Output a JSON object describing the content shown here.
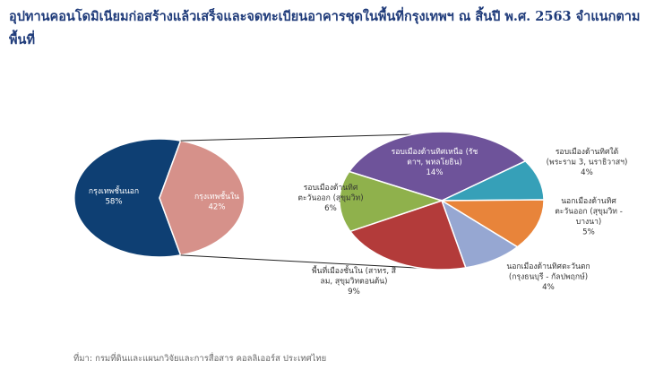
{
  "header": {
    "title": "อุปทานคอนโดมิเนียมก่อสร้างแล้วเสร็จและจดทะเบียนอาคารชุดในพื้นที่กรุงเทพฯ ณ สิ้นปี พ.ศ. 2563 จำแนกตามพื้นที่"
  },
  "footer": {
    "source": "ที่มา: กรมที่ดินและแผนกวิจัยและการสื่อสาร คอลลิเออร์ส ประเทศไทย"
  },
  "colors": {
    "outer_bkk": "#0e3f73",
    "inner_bkk": "#d6918a",
    "north": "#6e539a",
    "east_inner": "#8fb14c",
    "inner_city": "#b33b3a",
    "outer_west": "#96a7d2",
    "outer_east": "#e8843a",
    "north_outer": "#36a0b8",
    "text_light": "#ffffff",
    "text_dark": "#333333"
  },
  "chart_data": [
    {
      "type": "pie",
      "title": "",
      "slices": [
        {
          "name": "กรุงเทพชั้นนอก",
          "value": 58,
          "label_lines": [
            "กรุงเทพชั้นนอก",
            "58%"
          ]
        },
        {
          "name": "กรุงเทพชั้นใน",
          "value": 42,
          "label_lines": [
            "กรุงเทพชั้นใน",
            "42%"
          ]
        }
      ]
    },
    {
      "type": "pie",
      "title": "",
      "slices": [
        {
          "name": "รอบเมืองด้านทิศเหนือ (รัชดาฯ, พหลโยธิน)",
          "value": 14,
          "label_lines": [
            "รอบเมืองด้านทิศเหนือ (รัช",
            "ดาฯ, พหลโยธิน)",
            "14%"
          ]
        },
        {
          "name": "รอบเมืองด้านทิศใต้ (พระราม 3, นราธิวาสฯ)",
          "value": 4,
          "label_lines": [
            "รอบเมืองด้านทิศใต้",
            "(พระราม 3, นราธิวาสฯ)",
            "4%"
          ]
        },
        {
          "name": "นอกเมืองด้านทิศตะวันออก (สุขุมวิท - บางนา)",
          "value": 5,
          "label_lines": [
            "นอกเมืองด้านทิศ",
            "ตะวันออก (สุขุมวิท -",
            "บางนา)",
            "5%"
          ]
        },
        {
          "name": "นอกเมืองด้านทิศตะวันตก (กรุงธนบุรี - กัลปพฤกษ์)",
          "value": 4,
          "label_lines": [
            "นอกเมืองด้านทิศตะวันตก",
            "(กรุงธนบุรี - กัลปพฤกษ์)",
            "4%"
          ]
        },
        {
          "name": "พื้นที่เมืองชั้นใน (สาทร, สีลม, สุขุมวิทตอนต้น)",
          "value": 9,
          "label_lines": [
            "พื้นที่เมืองชั้นใน (สาทร, สี",
            "ลม, สุขุมวิทตอนต้น)",
            "9%"
          ]
        },
        {
          "name": "รอบเมืองด้านทิศตะวันออก (สุขุมวิท)",
          "value": 6,
          "label_lines": [
            "รอบเมืองด้านทิศ",
            "ตะวันออก (สุขุมวิท)",
            "6%"
          ]
        }
      ]
    }
  ]
}
